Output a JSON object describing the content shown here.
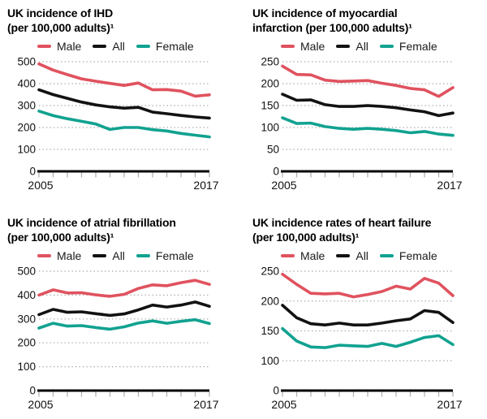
{
  "page": {
    "background": "#ffffff"
  },
  "colors": {
    "male": "#e0525f",
    "all": "#121212",
    "female": "#11a290",
    "grid": "#a9a9a9",
    "axis": "#000000",
    "tick": "#b3b3b3"
  },
  "legend": {
    "items": [
      {
        "key": "male",
        "label": "Male"
      },
      {
        "key": "all",
        "label": "All"
      },
      {
        "key": "female",
        "label": "Female"
      }
    ]
  },
  "x_axis": {
    "start_label": "2005",
    "end_label": "2017"
  },
  "chart_data": [
    {
      "id": "ihd",
      "type": "line",
      "title_line1": "UK incidence of IHD",
      "title_line2": "(per 100,000 adults)¹",
      "ylabel": "per 100,000 adults",
      "y_ticks": [
        0,
        100,
        200,
        300,
        400,
        500
      ],
      "x": [
        2005,
        2006,
        2007,
        2008,
        2009,
        2010,
        2011,
        2012,
        2013,
        2014,
        2015,
        2016,
        2017
      ],
      "series": [
        {
          "name": "Male",
          "color_key": "male",
          "values": [
            490,
            462,
            441,
            422,
            411,
            401,
            392,
            403,
            372,
            373,
            366,
            343,
            349
          ]
        },
        {
          "name": "All",
          "color_key": "all",
          "values": [
            372,
            350,
            333,
            316,
            303,
            294,
            288,
            292,
            270,
            263,
            255,
            248,
            243
          ]
        },
        {
          "name": "Female",
          "color_key": "female",
          "values": [
            275,
            254,
            240,
            228,
            216,
            191,
            200,
            200,
            190,
            184,
            173,
            165,
            157
          ]
        }
      ]
    },
    {
      "id": "myocardial-infarction",
      "type": "line",
      "title_line1": "UK incidence of myocardial",
      "title_line2": "infarction (per 100,000 adults)¹",
      "ylabel": "per 100,000 adults",
      "y_ticks": [
        0,
        50,
        100,
        150,
        200,
        250
      ],
      "x": [
        2005,
        2006,
        2007,
        2008,
        2009,
        2010,
        2011,
        2012,
        2013,
        2014,
        2015,
        2016,
        2017
      ],
      "series": [
        {
          "name": "Male",
          "color_key": "male",
          "values": [
            240,
            221,
            220,
            208,
            205,
            206,
            207,
            201,
            196,
            189,
            186,
            171,
            191
          ]
        },
        {
          "name": "All",
          "color_key": "all",
          "values": [
            176,
            162,
            163,
            152,
            148,
            148,
            150,
            148,
            145,
            140,
            136,
            127,
            133
          ]
        },
        {
          "name": "Female",
          "color_key": "female",
          "values": [
            122,
            109,
            110,
            102,
            98,
            96,
            98,
            96,
            93,
            88,
            91,
            85,
            82
          ]
        }
      ]
    },
    {
      "id": "atrial-fibrillation",
      "type": "line",
      "title_line1": "UK incidence of atrial fibrillation",
      "title_line2": "(per 100,000 adults)¹",
      "ylabel": "per 100,000 adults",
      "y_ticks": [
        0,
        100,
        200,
        300,
        400,
        500
      ],
      "x": [
        2005,
        2006,
        2007,
        2008,
        2009,
        2010,
        2011,
        2012,
        2013,
        2014,
        2015,
        2016,
        2017
      ],
      "series": [
        {
          "name": "Male",
          "color_key": "male",
          "values": [
            400,
            422,
            409,
            410,
            401,
            395,
            403,
            428,
            443,
            439,
            452,
            462,
            445
          ]
        },
        {
          "name": "All",
          "color_key": "all",
          "values": [
            318,
            340,
            328,
            330,
            322,
            315,
            321,
            338,
            358,
            350,
            358,
            371,
            353
          ]
        },
        {
          "name": "Female",
          "color_key": "female",
          "values": [
            262,
            282,
            270,
            272,
            264,
            257,
            267,
            283,
            292,
            282,
            290,
            297,
            281
          ]
        }
      ]
    },
    {
      "id": "heart-failure",
      "type": "line",
      "title_line1": "UK incidence rates of heart failure",
      "title_line2": "(per 100,000 adults)¹",
      "ylabel": "per 100,000 adults",
      "y_ticks": [
        0,
        100,
        150,
        200,
        250
      ],
      "x": [
        2005,
        2006,
        2007,
        2008,
        2009,
        2010,
        2011,
        2012,
        2013,
        2014,
        2015,
        2016,
        2017
      ],
      "series": [
        {
          "name": "Male",
          "color_key": "male",
          "values": [
            245,
            228,
            213,
            212,
            213,
            207,
            211,
            216,
            225,
            220,
            238,
            230,
            209
          ]
        },
        {
          "name": "All",
          "color_key": "all",
          "values": [
            193,
            172,
            162,
            160,
            163,
            160,
            160,
            163,
            167,
            170,
            184,
            181,
            164
          ]
        },
        {
          "name": "Female",
          "color_key": "female",
          "values": [
            154,
            133,
            123,
            122,
            126,
            125,
            124,
            129,
            124,
            131,
            139,
            142,
            127
          ]
        }
      ]
    }
  ]
}
